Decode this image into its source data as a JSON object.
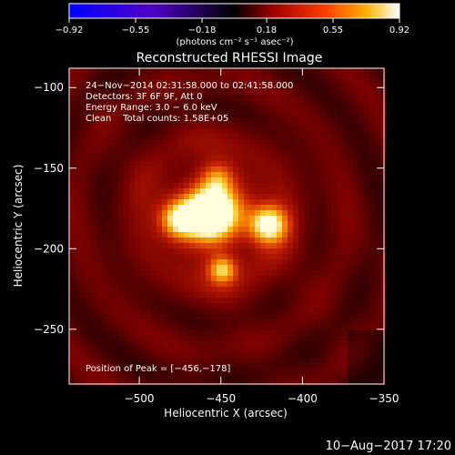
{
  "chart_data": {
    "type": "heatmap",
    "title": "Reconstructed RHESSI Image",
    "xlabel": "Heliocentric X (arcsec)",
    "ylabel": "Heliocentric Y (arcsec)",
    "xlim": [
      -543,
      -350
    ],
    "ylim": [
      -284,
      -88
    ],
    "x_ticks": [
      -500,
      -450,
      -400,
      -350
    ],
    "y_ticks": [
      -100,
      -150,
      -200,
      -250
    ],
    "x_tick_labels": [
      "−500",
      "−450",
      "−400",
      "−350"
    ],
    "y_tick_labels": [
      "−100",
      "−150",
      "−200",
      "−250"
    ],
    "colorbar": {
      "range": [
        -0.92,
        0.92
      ],
      "ticks": [
        -0.92,
        -0.55,
        -0.18,
        0.18,
        0.55,
        0.92
      ],
      "tick_labels": [
        "−0.92",
        "−0.55",
        "−0.18",
        "0.18",
        "0.55",
        "0.92"
      ],
      "units_label": "(photons cm⁻² s⁻¹ asec⁻²)"
    },
    "annotations": {
      "time_range": "24−Nov−2014 02:31:58.000 to 02:41:58.000",
      "detectors": "Detectors: 3F 6F 9F, Att 0",
      "energy": "Energy Range: 3.0 − 6.0 keV",
      "method_counts": "Clean    Total counts: 1.58E+05",
      "peak": "Position of Peak = [−456,−178]"
    },
    "sources": [
      {
        "x": -456,
        "y": -178,
        "sigma": 11,
        "amp": 1.0
      },
      {
        "x": -476,
        "y": -182,
        "sigma": 8,
        "amp": 0.6
      },
      {
        "x": -421,
        "y": -185,
        "sigma": 8,
        "amp": 0.75
      },
      {
        "x": -449,
        "y": -213,
        "sigma": 6,
        "amp": 0.55
      },
      {
        "x": -452,
        "y": -156,
        "sigma": 7,
        "amp": 0.35
      }
    ],
    "background_level": 0.22,
    "peak_position": [
      -456,
      -178
    ],
    "date_stamp": "10−Aug−2017 17:20"
  }
}
